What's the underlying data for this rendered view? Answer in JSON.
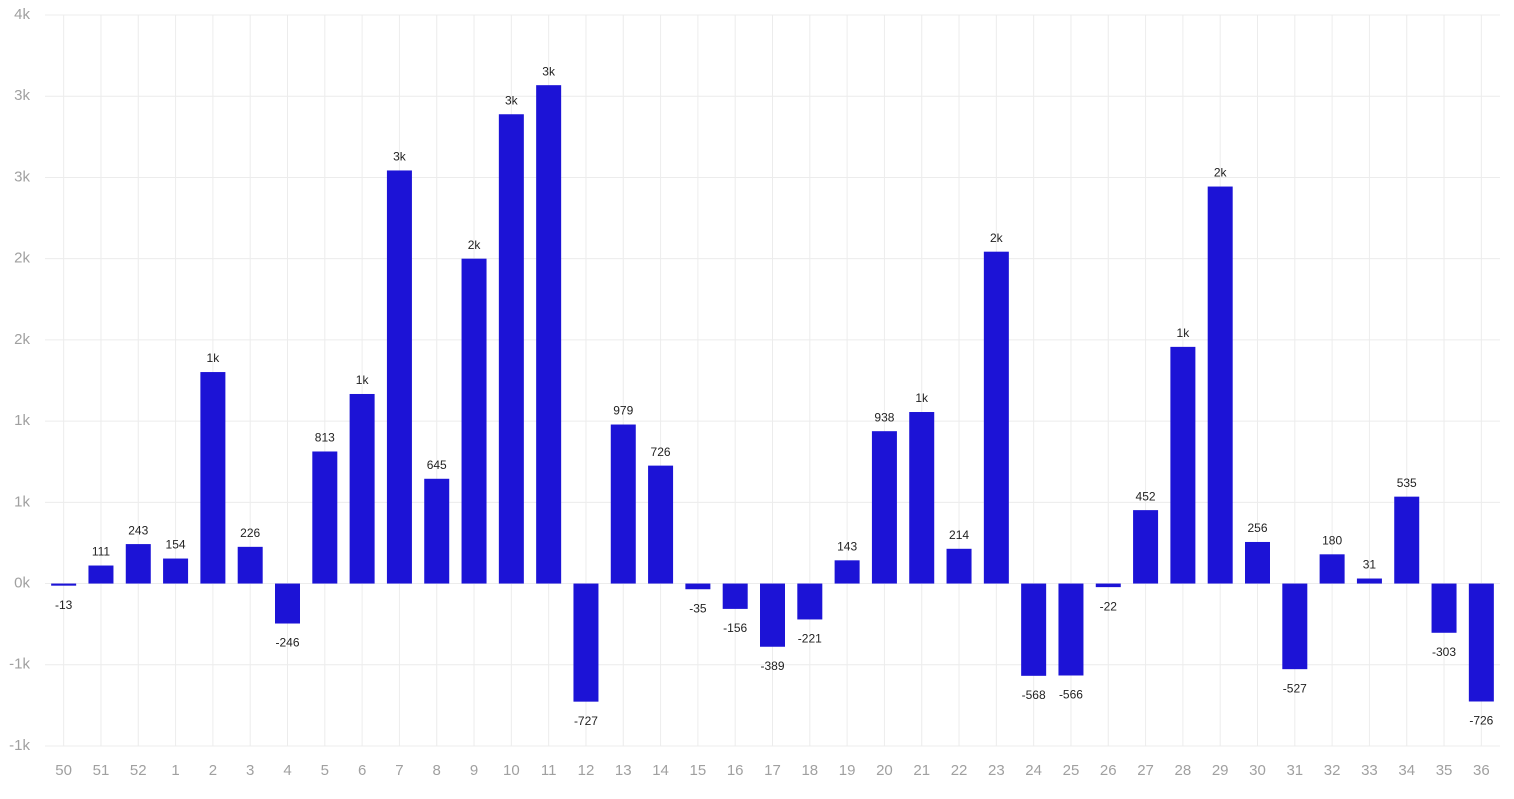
{
  "chart_data": {
    "type": "bar",
    "categories": [
      "50",
      "51",
      "52",
      "1",
      "2",
      "3",
      "4",
      "5",
      "6",
      "7",
      "8",
      "9",
      "10",
      "11",
      "12",
      "13",
      "14",
      "15",
      "16",
      "17",
      "18",
      "19",
      "20",
      "21",
      "22",
      "23",
      "24",
      "25",
      "26",
      "27",
      "28",
      "29",
      "30",
      "31",
      "32",
      "33",
      "34",
      "35",
      "36"
    ],
    "values": [
      -13,
      111,
      243,
      154,
      1302,
      226,
      -246,
      813,
      1167,
      2543,
      645,
      2000,
      2889,
      3068,
      -727,
      979,
      726,
      -35,
      -156,
      -389,
      -221,
      143,
      938,
      1056,
      214,
      2043,
      -568,
      -566,
      -22,
      452,
      1457,
      2444,
      256,
      -527,
      180,
      31,
      535,
      -303,
      -726
    ],
    "value_labels": [
      "-13",
      "111",
      "243",
      "154",
      "1k",
      "226",
      "-246",
      "813",
      "1k",
      "3k",
      "645",
      "2k",
      "3k",
      "3k",
      "-727",
      "979",
      "726",
      "-35",
      "-156",
      "-389",
      "-221",
      "143",
      "938",
      "1k",
      "214",
      "2k",
      "-568",
      "-566",
      "-22",
      "452",
      "1k",
      "2k",
      "256",
      "-527",
      "180",
      "31",
      "535",
      "-303",
      "-726"
    ],
    "color": "#1c13d6",
    "ylim": [
      -1000,
      3500
    ],
    "yticks": [
      {
        "value": -1000,
        "label": "-1k"
      },
      {
        "value": -500,
        "label": "-1k"
      },
      {
        "value": 0,
        "label": "0k"
      },
      {
        "value": 500,
        "label": "1k"
      },
      {
        "value": 1000,
        "label": "1k"
      },
      {
        "value": 1500,
        "label": "2k"
      },
      {
        "value": 2000,
        "label": "2k"
      },
      {
        "value": 2500,
        "label": "3k"
      },
      {
        "value": 3000,
        "label": "3k"
      },
      {
        "value": 3500,
        "label": "4k"
      }
    ],
    "grid": true
  }
}
